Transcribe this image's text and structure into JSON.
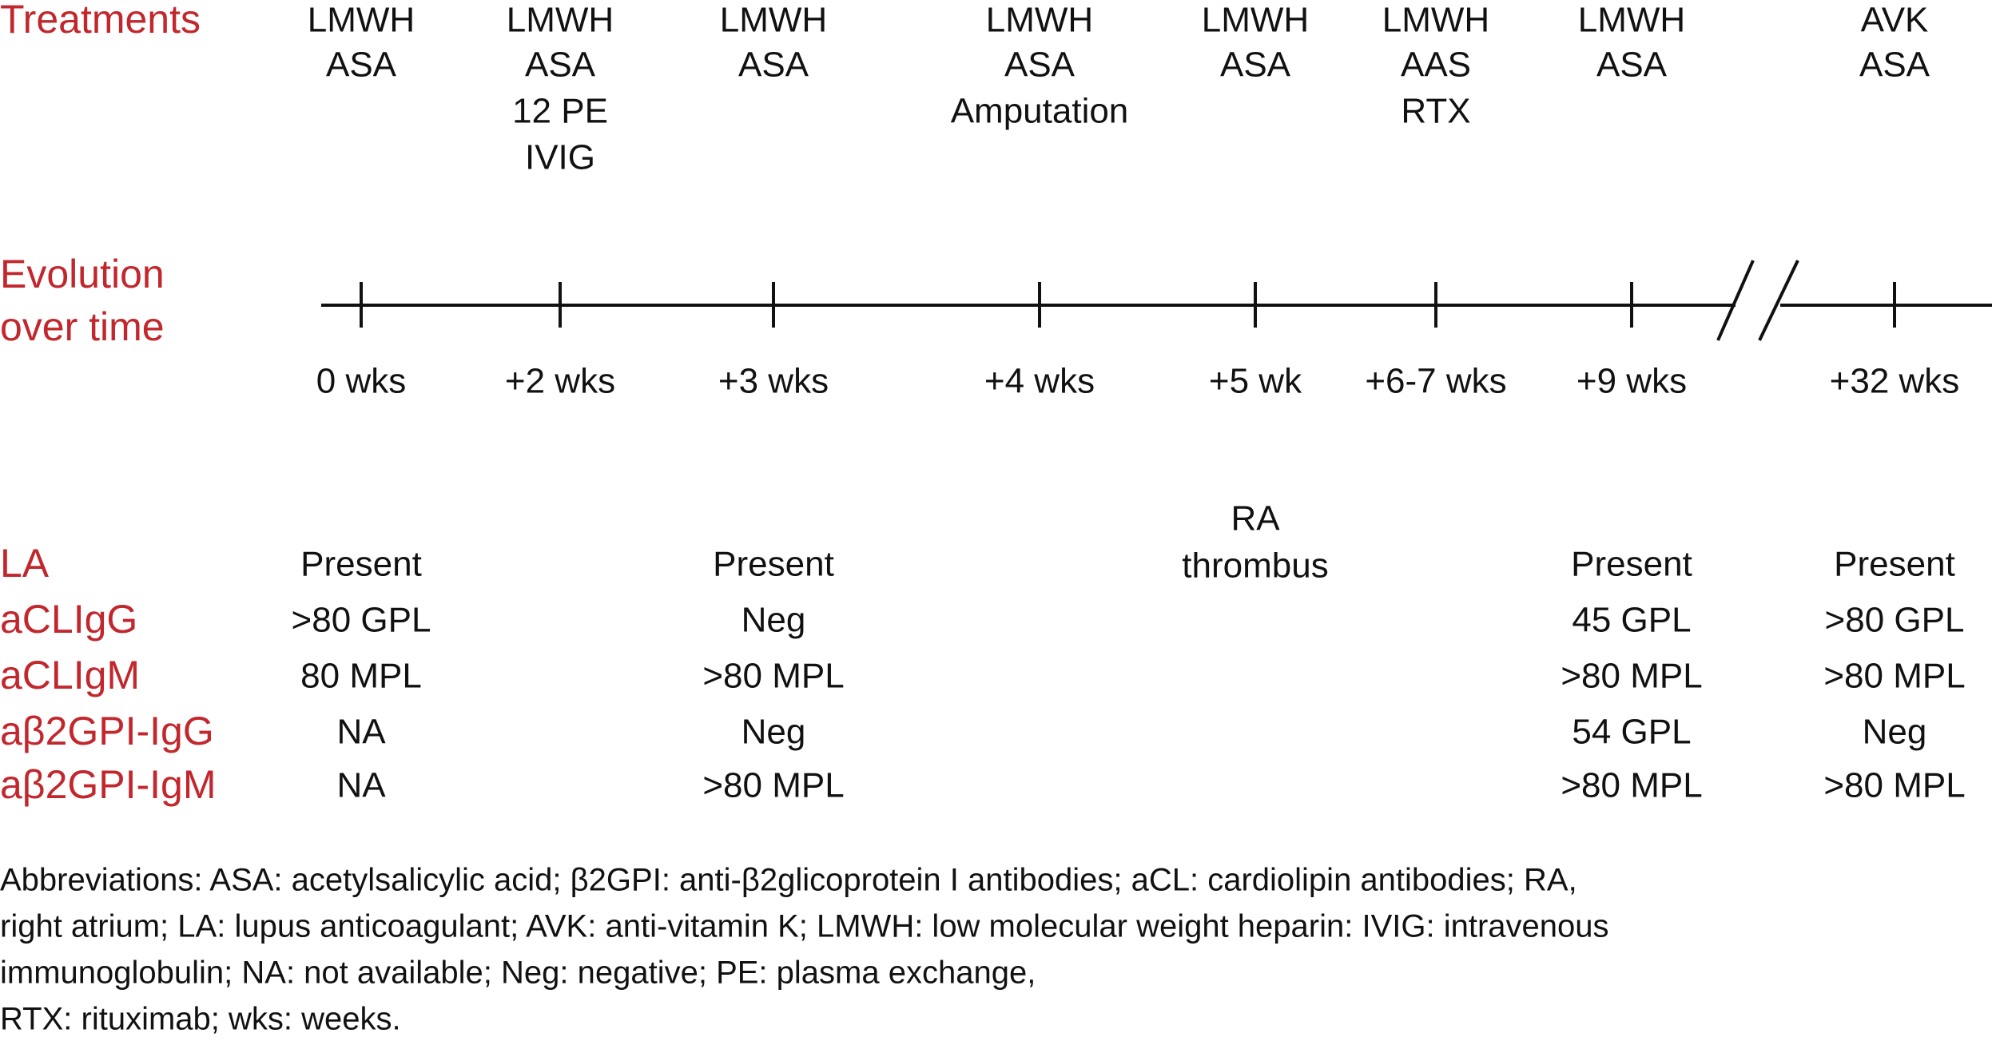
{
  "treatments_label": "Treatments",
  "evolution_label": [
    "Evolution",
    "over time"
  ],
  "timepoints": [
    {
      "label": "0 wks",
      "treatments": [
        "LMWH",
        "ASA"
      ],
      "results": [
        "Present",
        ">80 GPL",
        "80 MPL",
        "NA",
        "NA"
      ]
    },
    {
      "label": "+2 wks",
      "treatments": [
        "LMWH",
        "ASA",
        "12 PE",
        "IVIG"
      ]
    },
    {
      "label": "+3 wks",
      "treatments": [
        "LMWH",
        "ASA"
      ],
      "results": [
        "Present",
        "Neg",
        ">80 MPL",
        "Neg",
        ">80 MPL"
      ]
    },
    {
      "label": "+4 wks",
      "treatments": [
        "LMWH",
        "ASA",
        "Amputation"
      ]
    },
    {
      "label": "+5 wk",
      "treatments": [
        "LMWH",
        "ASA"
      ],
      "event": [
        "RA",
        "thrombus"
      ]
    },
    {
      "label": "+6-7 wks",
      "treatments": [
        "LMWH",
        "AAS",
        "RTX"
      ]
    },
    {
      "label": "+9 wks",
      "treatments": [
        "LMWH",
        "ASA"
      ],
      "results": [
        "Present",
        "45 GPL",
        ">80 MPL",
        "54 GPL",
        ">80 MPL"
      ]
    },
    {
      "label": "+32 wks",
      "treatments": [
        "AVK",
        "ASA"
      ],
      "results": [
        "Present",
        ">80 GPL",
        ">80 MPL",
        "Neg",
        ">80 MPL"
      ]
    }
  ],
  "lab_tests": [
    "LA",
    "aCLIgG",
    "aCLIgM",
    "aβ2GPI-IgG",
    "aβ2GPI-IgM"
  ],
  "footnote": [
    "Abbreviations: ASA: acetylsalicylic acid; β2GPI: anti-β2glicoprotein I antibodies; aCL: cardiolipin antibodies; RA,",
    "right atrium; LA: lupus anticoagulant; AVK: anti-vitamin K; LMWH: low molecular weight heparin: IVIG: intravenous",
    "immunoglobulin; NA: not available; Neg: negative; PE: plasma exchange,",
    "RTX: rituximab; wks: weeks."
  ]
}
